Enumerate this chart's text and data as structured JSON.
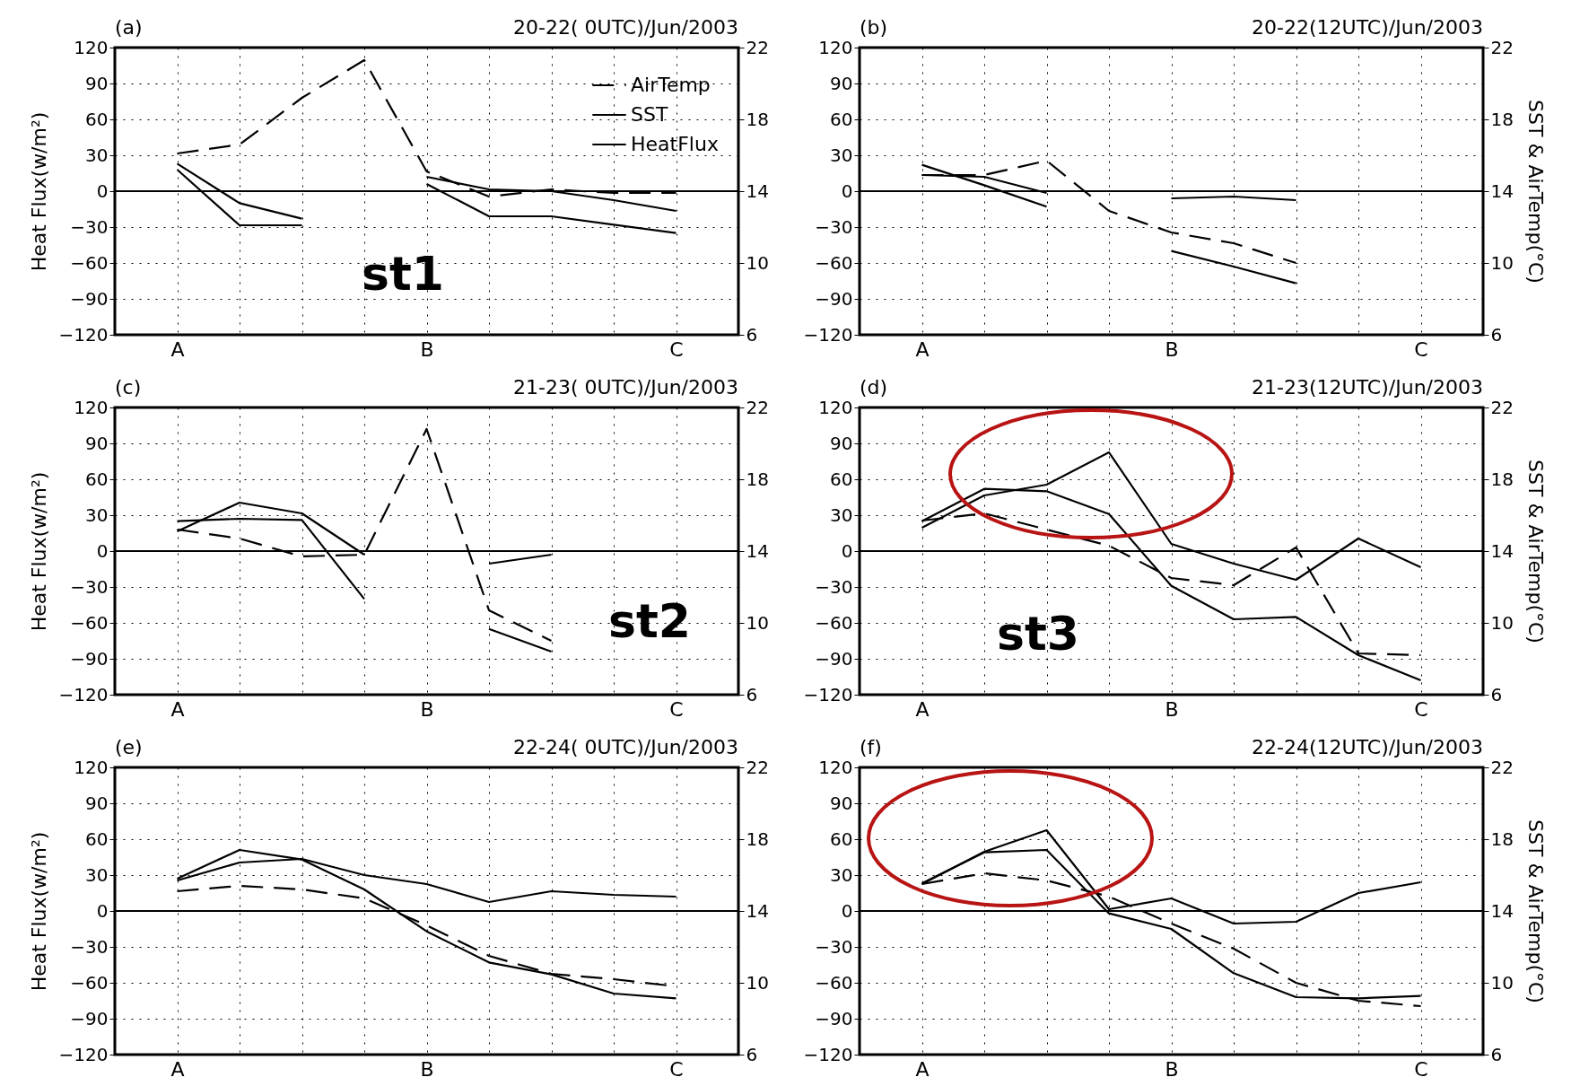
{
  "chart_data": [
    {
      "type": "line",
      "title": "20-22( 0UTC)/Jun/2003",
      "ylabel": "Heat Flux(w/m²)",
      "annotations": [
        "(a)",
        "st1"
      ],
      "categories": [
        "A",
        null,
        null,
        null,
        "B",
        null,
        null,
        null,
        "C"
      ],
      "series": [
        {
          "name": "AirTemp",
          "color": "#000000",
          "line_style": "dashed",
          "axis": "y2",
          "values": [
            16.1,
            16.6,
            19.2,
            21.3,
            15.1,
            13.7,
            14.1,
            13.9,
            13.9
          ]
        },
        {
          "name": "SST",
          "color": "#000000",
          "line_style": "solid",
          "axis": "y2",
          "values": [
            15.2,
            12.1,
            12.1,
            null,
            14.8,
            14.1,
            14.0,
            13.5,
            12.9
          ]
        },
        {
          "name": "HeatFlux",
          "color": "#000000",
          "line_style": "solid",
          "values": [
            23,
            -10,
            -23,
            null,
            6,
            -21,
            -21,
            -28,
            -35
          ]
        }
      ],
      "ylim": [
        -120,
        120
      ],
      "yticks": [
        -120,
        -90,
        -60,
        -30,
        0,
        30,
        60,
        90,
        120
      ],
      "y2lim": [
        6,
        22
      ],
      "y2ticks": [
        6,
        10,
        14,
        18,
        22
      ],
      "ref_lines": [
        {
          "axis": "y",
          "value": 0
        }
      ],
      "grid": true,
      "legend": "top right"
    },
    {
      "type": "line",
      "title": "20-22(12UTC)/Jun/2003",
      "y2label": "SST & AirTemp(°C)",
      "annotations": [
        "(b)"
      ],
      "categories": [
        "A",
        null,
        null,
        null,
        "B",
        null,
        null,
        null,
        "C"
      ],
      "series": [
        {
          "color": "#000000",
          "line_style": "dashed",
          "axis": "y2",
          "values": [
            14.9,
            14.9,
            15.7,
            12.9,
            11.7,
            11.1,
            10.0,
            null,
            null
          ]
        },
        {
          "color": "#000000",
          "line_style": "solid",
          "axis": "y2",
          "values": [
            14.9,
            14.8,
            13.9,
            null,
            13.6,
            13.7,
            13.5,
            null,
            null
          ]
        },
        {
          "color": "#000000",
          "line_style": "solid",
          "values": [
            22,
            5,
            -13,
            null,
            -50,
            -63,
            -77,
            null,
            null
          ]
        }
      ],
      "ylim": [
        -120,
        120
      ],
      "yticks": [
        -120,
        -90,
        -60,
        -30,
        0,
        30,
        60,
        90,
        120
      ],
      "y2lim": [
        6,
        22
      ],
      "y2ticks": [
        6,
        10,
        14,
        18,
        22
      ],
      "ref_lines": [
        {
          "axis": "y",
          "value": 0
        }
      ],
      "grid": true
    },
    {
      "type": "line",
      "title": "21-23( 0UTC)/Jun/2003",
      "ylabel": "Heat Flux(w/m²)",
      "annotations": [
        "(c)",
        "st2"
      ],
      "categories": [
        "A",
        null,
        null,
        null,
        "B",
        null,
        null,
        null,
        "C"
      ],
      "series": [
        {
          "color": "#000000",
          "line_style": "dashed",
          "axis": "y2",
          "values": [
            15.2,
            14.7,
            13.7,
            13.8,
            20.8,
            10.7,
            9.0,
            null,
            null
          ]
        },
        {
          "color": "#000000",
          "line_style": "solid",
          "axis": "y2",
          "values": [
            15.1,
            16.7,
            16.1,
            13.8,
            null,
            13.3,
            13.8,
            null,
            null
          ]
        },
        {
          "color": "#000000",
          "line_style": "solid",
          "values": [
            25,
            27,
            26,
            -40,
            null,
            -65,
            -84,
            null,
            null
          ]
        }
      ],
      "ylim": [
        -120,
        120
      ],
      "yticks": [
        -120,
        -90,
        -60,
        -30,
        0,
        30,
        60,
        90,
        120
      ],
      "y2lim": [
        6,
        22
      ],
      "y2ticks": [
        6,
        10,
        14,
        18,
        22
      ],
      "ref_lines": [
        {
          "axis": "y",
          "value": 0
        }
      ],
      "grid": true
    },
    {
      "type": "line",
      "title": "21-23(12UTC)/Jun/2003",
      "y2label": "SST & AirTemp(°C)",
      "annotations": [
        "(d)",
        "st3"
      ],
      "categories": [
        "A",
        null,
        null,
        null,
        "B",
        null,
        null,
        null,
        "C"
      ],
      "series": [
        {
          "color": "#000000",
          "line_style": "dashed",
          "axis": "y2",
          "values": [
            15.7,
            16.1,
            15.2,
            14.3,
            12.5,
            12.1,
            14.2,
            8.3,
            8.2
          ]
        },
        {
          "color": "#000000",
          "line_style": "solid",
          "axis": "y2",
          "values": [
            15.3,
            17.1,
            17.7,
            19.5,
            14.4,
            13.3,
            12.4,
            14.7,
            13.1
          ]
        },
        {
          "color": "#000000",
          "line_style": "solid",
          "values": [
            25,
            52,
            50,
            31,
            -29,
            -57,
            -55,
            -87,
            -108
          ]
        }
      ],
      "ylim": [
        -120,
        120
      ],
      "yticks": [
        -120,
        -90,
        -60,
        -30,
        0,
        30,
        60,
        90,
        120
      ],
      "y2lim": [
        6,
        22
      ],
      "y2ticks": [
        6,
        10,
        14,
        18,
        22
      ],
      "ref_lines": [
        {
          "axis": "y",
          "value": 0
        }
      ],
      "grid": true
    },
    {
      "type": "line",
      "title": "22-24( 0UTC)/Jun/2003",
      "ylabel": "Heat Flux(w/m²)",
      "annotations": [
        "(e)"
      ],
      "categories": [
        "A",
        null,
        null,
        null,
        "B",
        null,
        null,
        null,
        "C"
      ],
      "series": [
        {
          "color": "#000000",
          "line_style": "dashed",
          "axis": "y2",
          "values": [
            15.1,
            15.4,
            15.2,
            14.7,
            13.2,
            11.5,
            10.5,
            10.2,
            9.8
          ]
        },
        {
          "color": "#000000",
          "line_style": "solid",
          "axis": "y2",
          "values": [
            15.7,
            16.7,
            16.9,
            16.0,
            15.5,
            14.5,
            15.1,
            14.9,
            14.8
          ]
        },
        {
          "color": "#000000",
          "line_style": "solid",
          "values": [
            27,
            51,
            43,
            18,
            -17,
            -43,
            -53,
            -69,
            -73
          ]
        }
      ],
      "ylim": [
        -120,
        120
      ],
      "yticks": [
        -120,
        -90,
        -60,
        -30,
        0,
        30,
        60,
        90,
        120
      ],
      "y2lim": [
        6,
        22
      ],
      "y2ticks": [
        6,
        10,
        14,
        18,
        22
      ],
      "ref_lines": [
        {
          "axis": "y",
          "value": 0
        }
      ],
      "grid": true
    },
    {
      "type": "line",
      "title": "22-24(12UTC)/Jun/2003",
      "y2label": "SST & AirTemp(°C)",
      "annotations": [
        "(f)"
      ],
      "categories": [
        "A",
        null,
        null,
        null,
        "B",
        null,
        null,
        null,
        "C"
      ],
      "series": [
        {
          "color": "#000000",
          "line_style": "dashed",
          "axis": "y2",
          "values": [
            15.5,
            16.1,
            15.7,
            14.8,
            13.3,
            11.9,
            10.0,
            9.0,
            8.7
          ]
        },
        {
          "color": "#000000",
          "line_style": "solid",
          "axis": "y2",
          "values": [
            15.5,
            17.3,
            18.5,
            14.1,
            14.7,
            13.3,
            13.4,
            15.0,
            15.6
          ]
        },
        {
          "color": "#000000",
          "line_style": "solid",
          "values": [
            23,
            49,
            51,
            -2,
            -15,
            -52,
            -72,
            -73,
            -71
          ]
        }
      ],
      "ylim": [
        -120,
        120
      ],
      "yticks": [
        -120,
        -90,
        -60,
        -30,
        0,
        30,
        60,
        90,
        120
      ],
      "y2lim": [
        6,
        22
      ],
      "y2ticks": [
        6,
        10,
        14,
        18,
        22
      ],
      "ref_lines": [
        {
          "axis": "y",
          "value": 0
        }
      ],
      "grid": true
    }
  ]
}
